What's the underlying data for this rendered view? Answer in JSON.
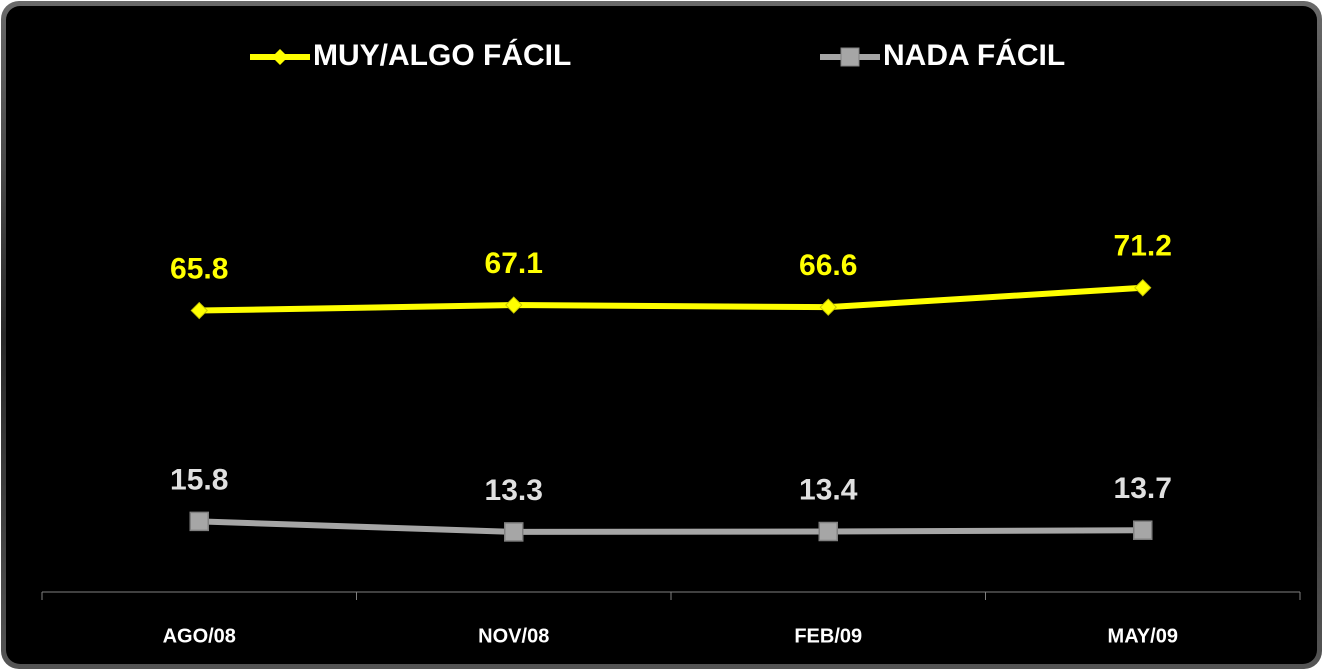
{
  "chart_data": {
    "type": "line",
    "categories": [
      "AGO/08",
      "NOV/08",
      "FEB/09",
      "MAY/09"
    ],
    "series": [
      {
        "name": "MUY/ALGO FÁCIL",
        "color": "#ffff00",
        "marker": "diamond",
        "values": [
          65.8,
          67.1,
          66.6,
          71.2
        ]
      },
      {
        "name": "NADA FÁCIL",
        "color": "#a6a6a6",
        "marker": "square",
        "values": [
          15.8,
          13.3,
          13.4,
          13.7
        ]
      }
    ],
    "ylim": [
      0,
      120
    ],
    "legend": "top"
  }
}
